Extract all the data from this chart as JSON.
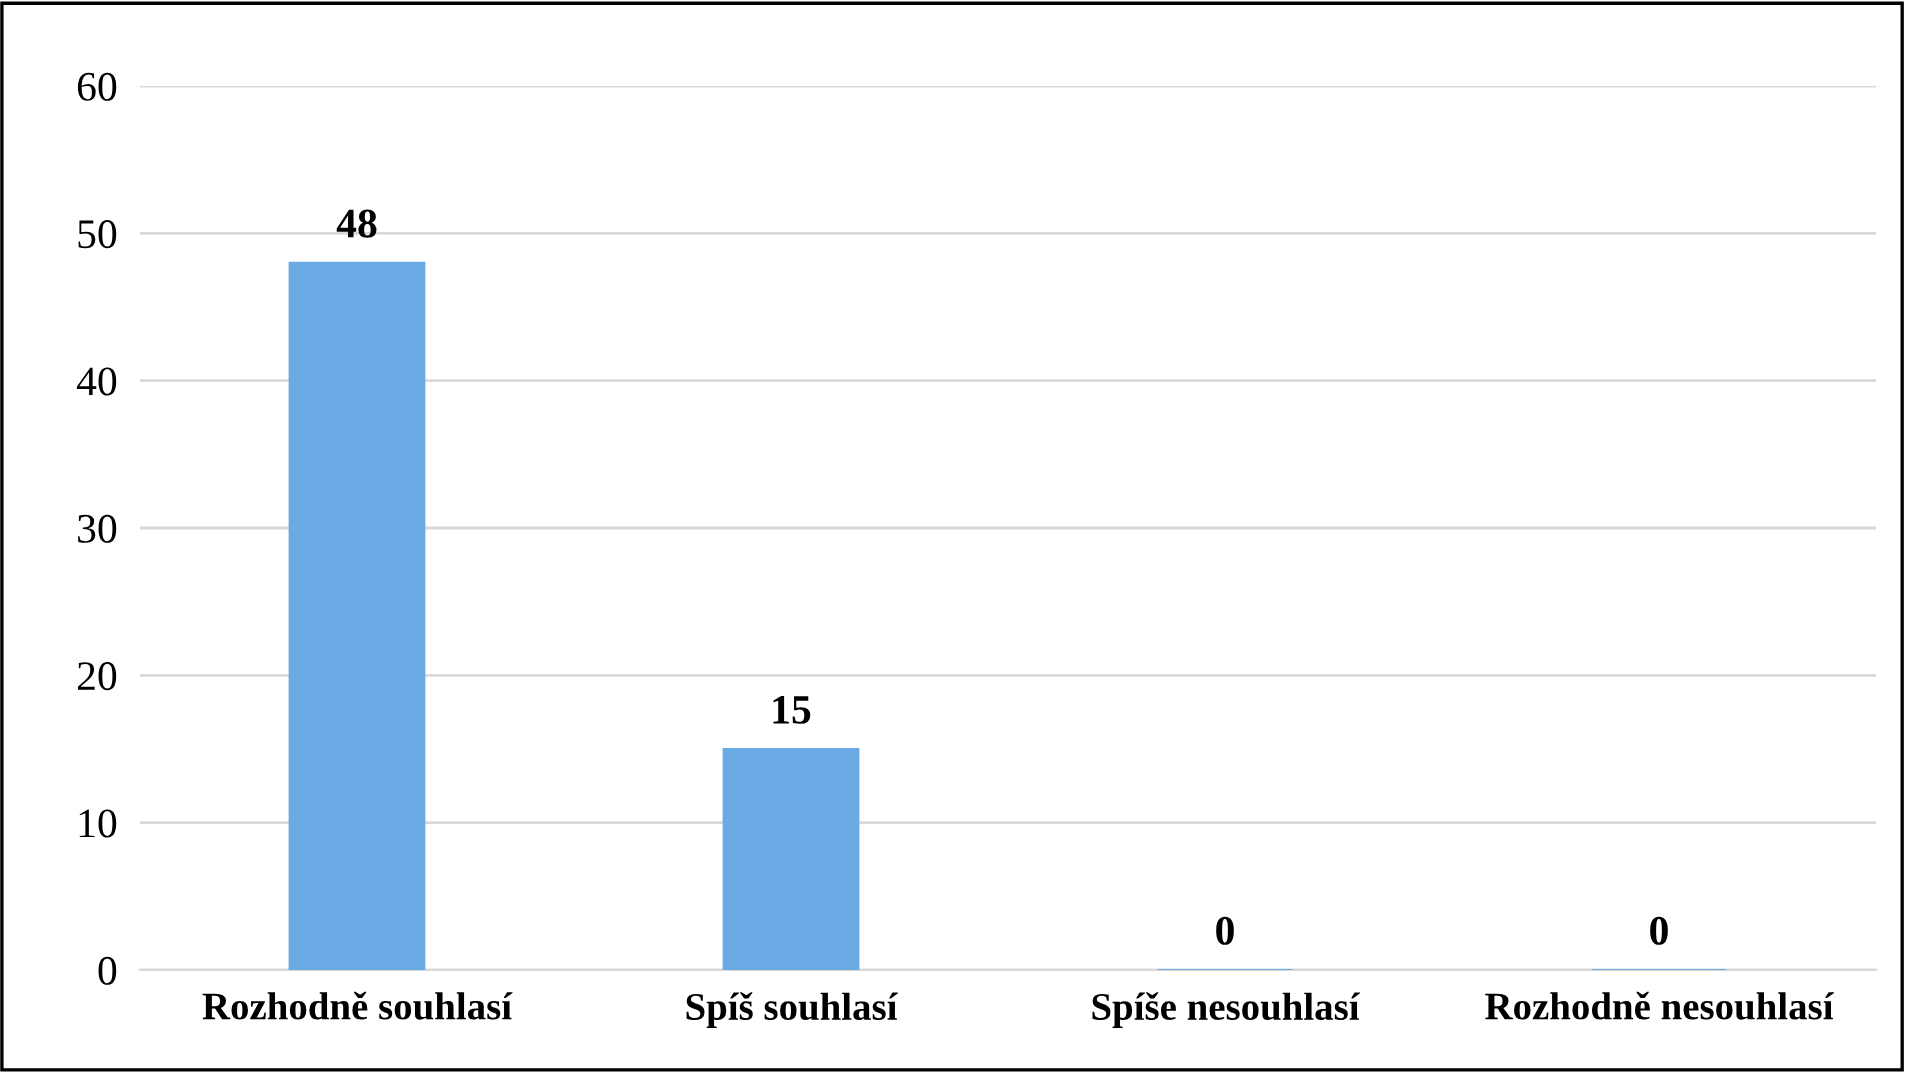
{
  "chart_data": {
    "type": "bar",
    "categories": [
      "Rozhodně souhlasí",
      "Spíš souhlasí",
      "Spíše nesouhlasí",
      "Rozhodně nesouhlasí"
    ],
    "values": [
      48,
      15,
      0,
      0
    ],
    "color": "#6aaae4",
    "ylim": [
      0,
      60
    ],
    "yticks": [
      0,
      10,
      20,
      30,
      40,
      50,
      60
    ],
    "grid": "y",
    "data_labels": true
  }
}
